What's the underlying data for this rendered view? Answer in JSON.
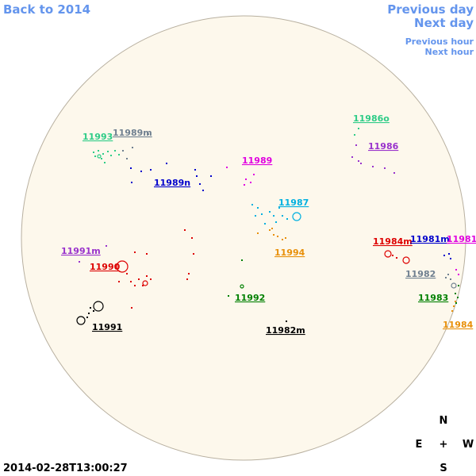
{
  "nav": {
    "back": "Back to 2014",
    "previous_day": "Previous day",
    "next_day": "Next day",
    "previous_hour": "Previous hour",
    "next_hour": "Next hour"
  },
  "timestamp": "2014-02-28T13:00:27",
  "compass": {
    "north": "N",
    "east": "E",
    "center": "+",
    "west": "W",
    "south": "S"
  },
  "regions": [
    {
      "label": "11993",
      "color": "#2ecc87"
    },
    {
      "label": "11989m",
      "color": "#708090"
    },
    {
      "label": "11989n",
      "color": "#0000cc"
    },
    {
      "label": "11989",
      "color": "#e000e0"
    },
    {
      "label": "11986o",
      "color": "#2ecc87"
    },
    {
      "label": "11986",
      "color": "#9932cc"
    },
    {
      "label": "11987",
      "color": "#00b0e0"
    },
    {
      "label": "11994",
      "color": "#e8900a"
    },
    {
      "label": "11991m",
      "color": "#9932cc"
    },
    {
      "label": "11990",
      "color": "#dd0000"
    },
    {
      "label": "11992",
      "color": "#008000"
    },
    {
      "label": "11991",
      "color": "#000000"
    },
    {
      "label": "11982m",
      "color": "#000000"
    },
    {
      "label": "11984m",
      "color": "#dd0000"
    },
    {
      "label": "11981m",
      "color": "#0000cc"
    },
    {
      "label": "11981",
      "color": "#e000e0"
    },
    {
      "label": "11982",
      "color": "#708090"
    },
    {
      "label": "11983",
      "color": "#008000"
    },
    {
      "label": "11984",
      "color": "#e8900a"
    }
  ]
}
